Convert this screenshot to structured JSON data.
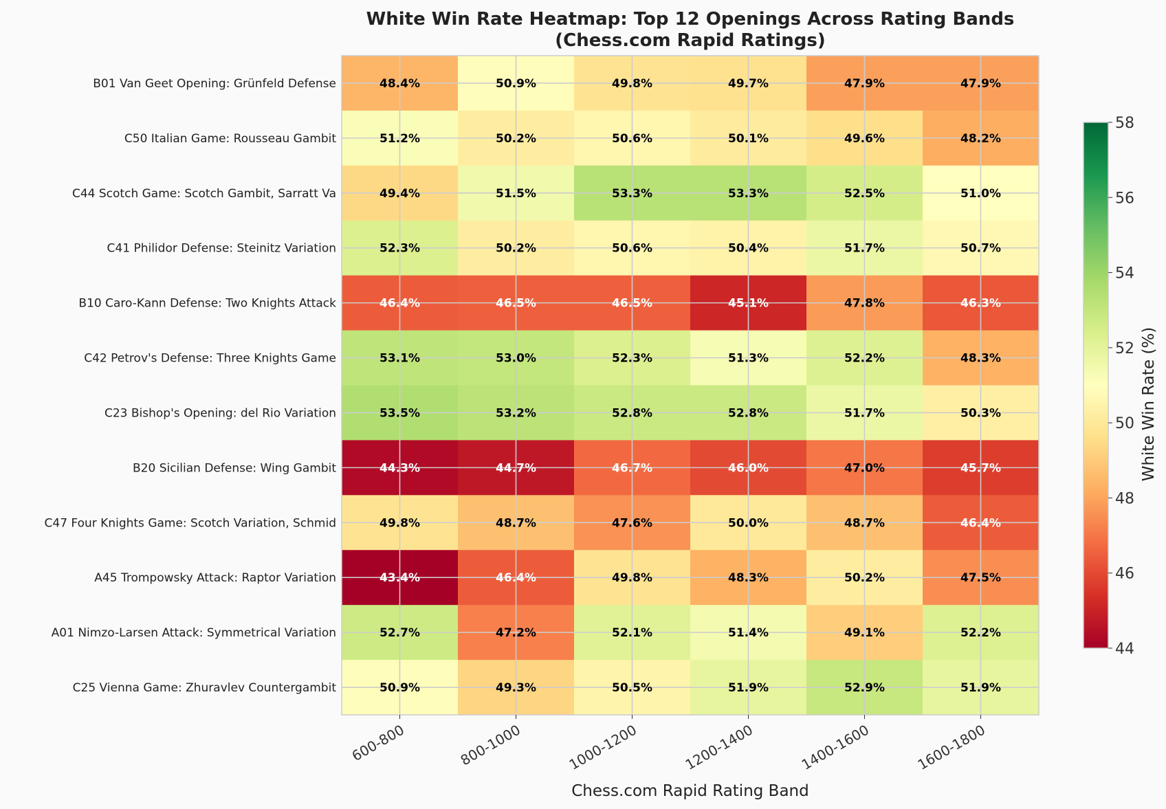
{
  "chart_data": {
    "type": "heatmap",
    "title": "White Win Rate Heatmap: Top 12 Openings Across Rating Bands",
    "subtitle": "(Chess.com Rapid Ratings)",
    "xlabel": "Chess.com Rapid Rating Band",
    "ylabel": "",
    "colorbar_label": "White Win Rate (%)",
    "colormap": "RdYlGn",
    "vmin": 44,
    "vmax": 58,
    "colorbar_ticks": [
      "44",
      "46",
      "48",
      "50",
      "52",
      "54",
      "56",
      "58"
    ],
    "grid": true,
    "columns": [
      "600-800",
      "800-1000",
      "1000-1200",
      "1200-1400",
      "1400-1600",
      "1600-1800"
    ],
    "rows": [
      "B01 Van Geet Opening: Grünfeld Defense",
      "C50 Italian Game: Rousseau Gambit",
      "C44 Scotch Game: Scotch Gambit, Sarratt Va",
      "C41 Philidor Defense: Steinitz Variation",
      "B10 Caro-Kann Defense: Two Knights Attack",
      "C42 Petrov's Defense: Three Knights Game",
      "C23 Bishop's Opening: del Rio Variation",
      "B20 Sicilian Defense: Wing Gambit",
      "C47 Four Knights Game: Scotch Variation, Schmid",
      "A45 Trompowsky Attack: Raptor Variation",
      "A01 Nimzo-Larsen Attack: Symmetrical Variation",
      "C25 Vienna Game: Zhuravlev Countergambit"
    ],
    "values": [
      [
        48.4,
        50.9,
        49.8,
        49.7,
        47.9,
        47.9
      ],
      [
        51.2,
        50.2,
        50.6,
        50.1,
        49.6,
        48.2
      ],
      [
        49.4,
        51.5,
        53.3,
        53.3,
        52.5,
        51.0
      ],
      [
        52.3,
        50.2,
        50.6,
        50.4,
        51.7,
        50.7
      ],
      [
        46.4,
        46.5,
        46.5,
        45.1,
        47.8,
        46.3
      ],
      [
        53.1,
        53.0,
        52.3,
        51.3,
        52.2,
        48.3
      ],
      [
        53.5,
        53.2,
        52.8,
        52.8,
        51.7,
        50.3
      ],
      [
        44.3,
        44.7,
        46.7,
        46.0,
        47.0,
        45.7
      ],
      [
        49.8,
        48.7,
        47.6,
        50.0,
        48.7,
        46.4
      ],
      [
        43.4,
        46.4,
        49.8,
        48.3,
        50.2,
        47.5
      ],
      [
        52.7,
        47.2,
        52.1,
        51.4,
        49.1,
        52.2
      ],
      [
        50.9,
        49.3,
        50.5,
        51.9,
        52.9,
        51.9
      ]
    ],
    "value_suffix": "%"
  }
}
